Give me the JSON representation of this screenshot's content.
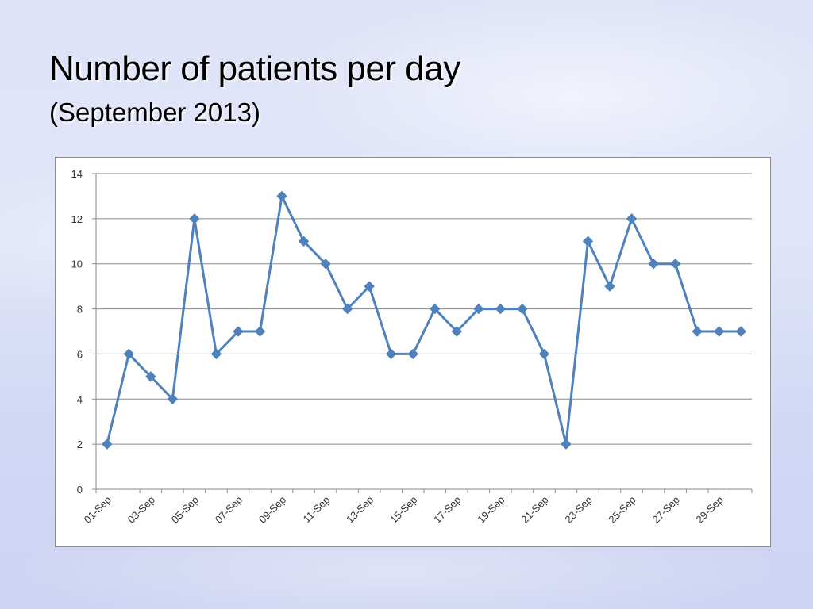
{
  "slide": {
    "title": "Number of patients per day",
    "subtitle": "(September 2013)"
  },
  "chart_data": {
    "type": "line",
    "title": "",
    "xlabel": "",
    "ylabel": "",
    "ylim": [
      0,
      14
    ],
    "yticks": [
      0,
      2,
      4,
      6,
      8,
      10,
      12,
      14
    ],
    "grid": "horizontal",
    "legend": "none",
    "line_color": "#4f81bd",
    "categories": [
      "01-Sep",
      "02-Sep",
      "03-Sep",
      "04-Sep",
      "05-Sep",
      "06-Sep",
      "07-Sep",
      "08-Sep",
      "09-Sep",
      "10-Sep",
      "11-Sep",
      "12-Sep",
      "13-Sep",
      "14-Sep",
      "15-Sep",
      "16-Sep",
      "17-Sep",
      "18-Sep",
      "19-Sep",
      "20-Sep",
      "21-Sep",
      "22-Sep",
      "23-Sep",
      "24-Sep",
      "25-Sep",
      "26-Sep",
      "27-Sep",
      "28-Sep",
      "29-Sep",
      "30-Sep"
    ],
    "tick_labels": [
      "01-Sep",
      "03-Sep",
      "05-Sep",
      "07-Sep",
      "09-Sep",
      "11-Sep",
      "13-Sep",
      "15-Sep",
      "17-Sep",
      "19-Sep",
      "21-Sep",
      "23-Sep",
      "25-Sep",
      "27-Sep",
      "29-Sep"
    ],
    "series": [
      {
        "values": [
          2,
          6,
          5,
          4,
          12,
          6,
          7,
          7,
          13,
          11,
          10,
          8,
          9,
          6,
          6,
          8,
          7,
          8,
          8,
          8,
          6,
          2,
          11,
          9,
          12,
          10,
          10,
          7,
          7,
          7
        ]
      }
    ]
  }
}
